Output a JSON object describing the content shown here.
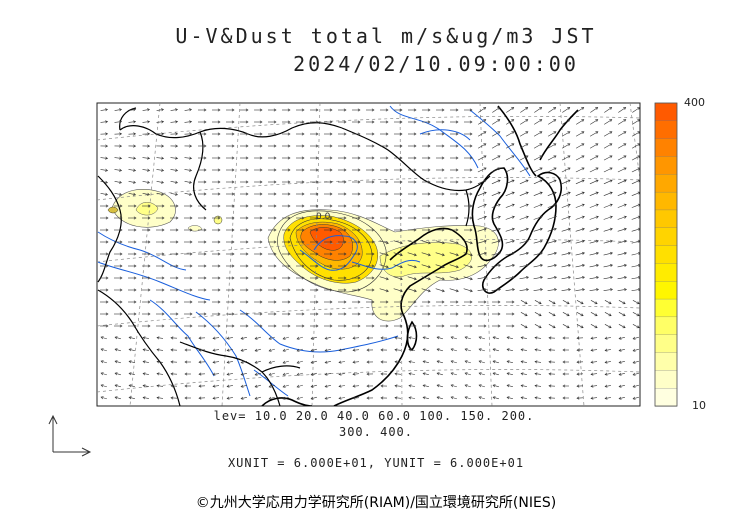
{
  "title": {
    "line1": "U-V&Dust total m/s&ug/m3 JST",
    "line2": "2024/02/10.09:00:00"
  },
  "colorbar": {
    "max_label": "400",
    "min_label": "10",
    "colors": [
      "#ff5a00",
      "#ff6e00",
      "#ff8200",
      "#ff9600",
      "#ffa800",
      "#ffb800",
      "#ffc800",
      "#ffd400",
      "#ffe000",
      "#ffec00",
      "#fff600",
      "#ffff33",
      "#ffff66",
      "#ffff88",
      "#ffffaa",
      "#ffffc8",
      "#ffffe0"
    ]
  },
  "levels": {
    "line1": "lev= 10.0 20.0 40.0 60.0 100. 150. 200.",
    "line2": "300. 400."
  },
  "units": "XUNIT = 6.000E+01, YUNIT = 6.000E+01",
  "copyright": "©九州大学応用力学研究所(RIAM)/国立環境研究所(NIES)",
  "colors": {
    "coast": "#000000",
    "river": "#1a5fdc",
    "grid": "#888888",
    "dust_low": "#ffffc8",
    "dust_mid": "#ffe000",
    "dust_high": "#ff6e00"
  }
}
